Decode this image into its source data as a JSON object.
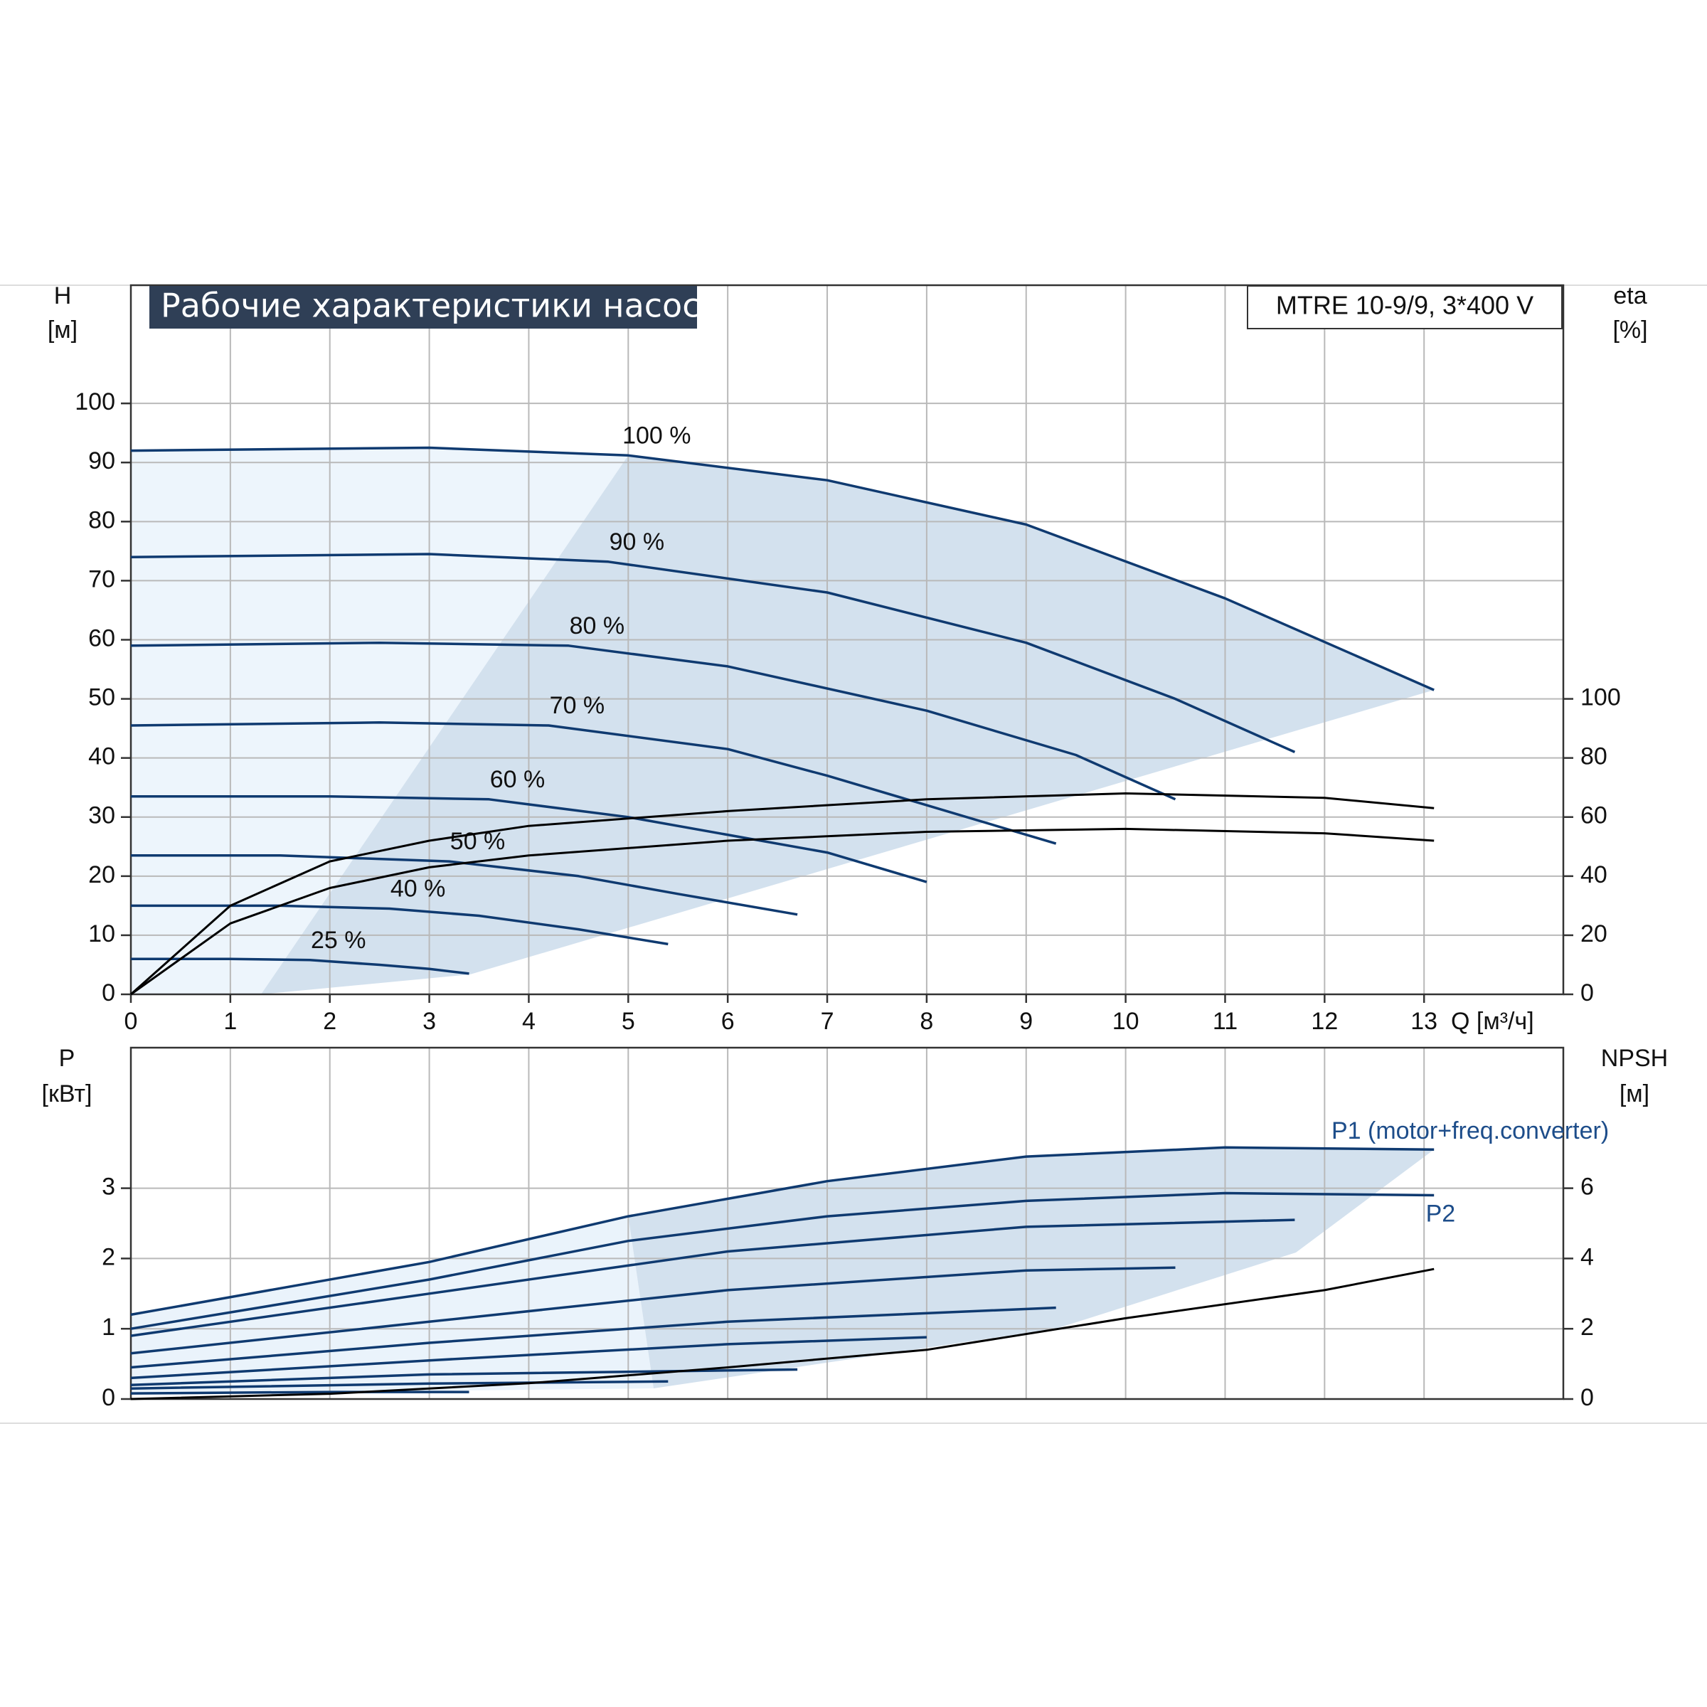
{
  "chart_data": [
    {
      "type": "line",
      "title": "Рабочие характеристики насоса",
      "subtitle": "MTRE 10-9/9, 3*400 V",
      "ylabel": "H",
      "yunit": "[м]",
      "y2label": "eta",
      "y2unit": "[%]",
      "xlabel": "Q [м³/ч]",
      "xlim": [
        0,
        14.4
      ],
      "xticks": [
        0,
        1,
        2,
        3,
        4,
        5,
        6,
        7,
        8,
        9,
        10,
        11,
        12,
        13
      ],
      "ylim": [
        0,
        120
      ],
      "yticks": [
        0,
        10,
        20,
        30,
        40,
        50,
        60,
        70,
        80,
        90,
        100
      ],
      "y2lim": [
        0,
        240
      ],
      "y2ticks": [
        0,
        20,
        40,
        60,
        80,
        100
      ],
      "grid": true,
      "series": [
        {
          "label": "100 %",
          "color": "#0f3a70",
          "x": [
            0,
            3,
            5,
            7,
            9,
            11,
            13.1
          ],
          "values": [
            92,
            92.5,
            91.2,
            87,
            79.5,
            67,
            51.5
          ]
        },
        {
          "label": "90 %",
          "color": "#0f3a70",
          "x": [
            0,
            3,
            4.8,
            7,
            9,
            10.5,
            11.7
          ],
          "values": [
            74,
            74.5,
            73.2,
            68,
            59.5,
            50,
            41
          ]
        },
        {
          "label": "80 %",
          "color": "#0f3a70",
          "x": [
            0,
            2.5,
            4.4,
            6,
            8,
            9.5,
            10.5
          ],
          "values": [
            59,
            59.5,
            59,
            55.5,
            48,
            40.5,
            33
          ]
        },
        {
          "label": "70 %",
          "color": "#0f3a70",
          "x": [
            0,
            2.5,
            4.2,
            6,
            7,
            8,
            9.3
          ],
          "values": [
            45.5,
            46,
            45.5,
            41.5,
            37,
            32,
            25.5
          ]
        },
        {
          "label": "60 %",
          "color": "#0f3a70",
          "x": [
            0,
            2,
            3.6,
            5,
            7,
            8
          ],
          "values": [
            33.5,
            33.5,
            33,
            30,
            24,
            19
          ]
        },
        {
          "label": "50 %",
          "color": "#0f3a70",
          "x": [
            0,
            1.5,
            3.2,
            4.5,
            5.5,
            6.7
          ],
          "values": [
            23.5,
            23.5,
            22.5,
            20,
            17,
            13.5
          ]
        },
        {
          "label": "40 %",
          "color": "#0f3a70",
          "x": [
            0,
            1.5,
            2.6,
            3.5,
            4.5,
            5.4
          ],
          "values": [
            15,
            15,
            14.5,
            13.3,
            11,
            8.5
          ]
        },
        {
          "label": "25 %",
          "color": "#0f3a70",
          "x": [
            0,
            1,
            1.8,
            2.5,
            3,
            3.4
          ],
          "values": [
            6,
            6,
            5.8,
            5,
            4.3,
            3.5
          ]
        },
        {
          "color": "#000000",
          "axis": "y2",
          "x": [
            0,
            1,
            2,
            3,
            4,
            6,
            8,
            10,
            12,
            13.1
          ],
          "values": [
            0,
            30,
            45,
            52,
            57,
            62,
            66,
            68,
            66.5,
            63
          ]
        },
        {
          "color": "#000000",
          "axis": "y2",
          "x": [
            0,
            1,
            2,
            3,
            4,
            6,
            8,
            10,
            12,
            13.1
          ],
          "values": [
            0,
            24,
            36,
            43,
            47,
            52,
            55,
            56,
            54.5,
            52
          ]
        }
      ]
    },
    {
      "type": "line",
      "ylabel": "P",
      "yunit": "[кВт]",
      "y2label": "NPSH",
      "y2unit": "[м]",
      "xlim": [
        0,
        14.4
      ],
      "ylim": [
        0,
        5
      ],
      "yticks": [
        0,
        1,
        2,
        3
      ],
      "y2lim": [
        0,
        10
      ],
      "y2ticks": [
        0,
        2,
        4,
        6
      ],
      "grid": true,
      "series": [
        {
          "label": "P1 (motor+freq.converter)",
          "color": "#0f3a70",
          "x": [
            0,
            3,
            5,
            7,
            9,
            11,
            13.1
          ],
          "values": [
            1.2,
            1.95,
            2.6,
            3.1,
            3.45,
            3.58,
            3.55
          ]
        },
        {
          "label": "P2",
          "color": "#0f3a70",
          "x": [
            0,
            3,
            5,
            7,
            9,
            11,
            13.1
          ],
          "values": [
            1.0,
            1.7,
            2.25,
            2.6,
            2.82,
            2.93,
            2.9
          ]
        },
        {
          "color": "#0f3a70",
          "x": [
            0,
            3,
            6,
            9,
            11.7
          ],
          "values": [
            0.9,
            1.5,
            2.1,
            2.45,
            2.55
          ]
        },
        {
          "color": "#0f3a70",
          "x": [
            0,
            3,
            6,
            9,
            10.5
          ],
          "values": [
            0.65,
            1.1,
            1.55,
            1.83,
            1.87
          ]
        },
        {
          "color": "#0f3a70",
          "x": [
            0,
            3,
            6,
            9.3
          ],
          "values": [
            0.45,
            0.8,
            1.1,
            1.3
          ]
        },
        {
          "color": "#0f3a70",
          "x": [
            0,
            3,
            6,
            8
          ],
          "values": [
            0.3,
            0.55,
            0.78,
            0.88
          ]
        },
        {
          "color": "#0f3a70",
          "x": [
            0,
            3,
            6.7
          ],
          "values": [
            0.2,
            0.35,
            0.42
          ]
        },
        {
          "color": "#0f3a70",
          "x": [
            0,
            3,
            5.4
          ],
          "values": [
            0.15,
            0.22,
            0.25
          ]
        },
        {
          "color": "#0f3a70",
          "x": [
            0,
            2,
            3.4
          ],
          "values": [
            0.08,
            0.1,
            0.1
          ]
        },
        {
          "color": "#000000",
          "axis": "y2",
          "x": [
            0,
            2,
            4,
            6,
            8,
            10,
            12,
            13.1
          ],
          "values": [
            0,
            0.15,
            0.45,
            0.9,
            1.4,
            2.3,
            3.1,
            3.7
          ]
        }
      ]
    }
  ]
}
